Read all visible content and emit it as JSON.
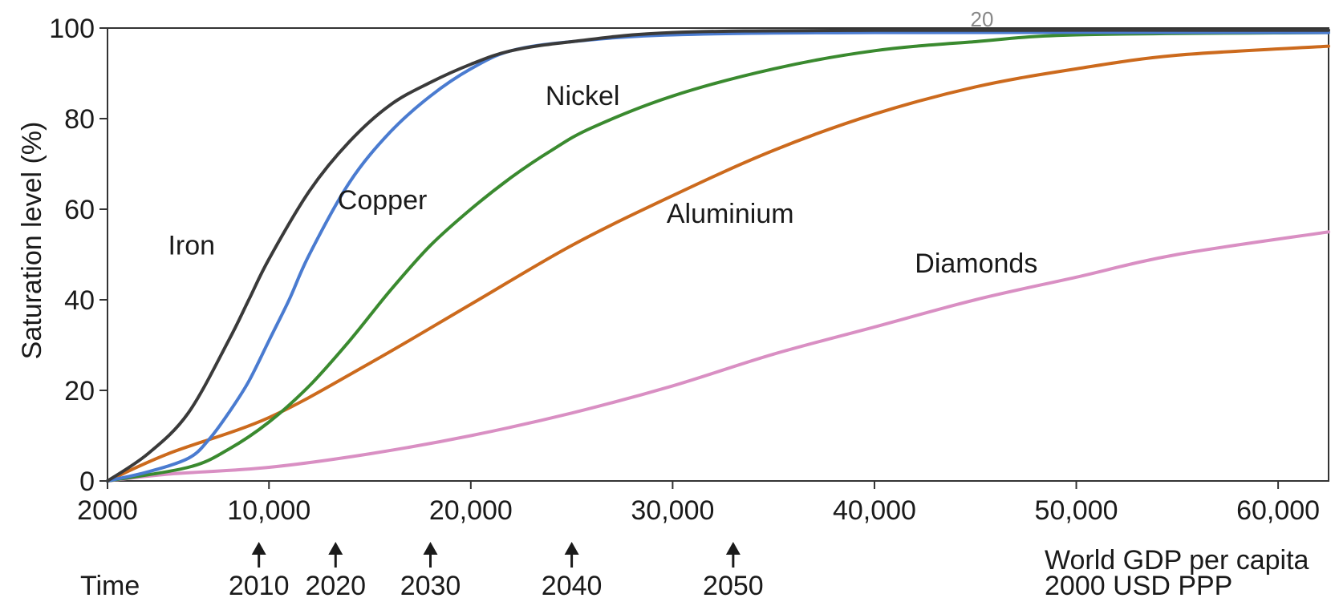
{
  "chart_data": {
    "type": "line",
    "title": "",
    "ylabel": "Saturation level (%)",
    "xlabel_lines": [
      "World GDP per capita",
      "2000 USD PPP"
    ],
    "xlim": [
      2000,
      62500
    ],
    "ylim": [
      0,
      100
    ],
    "x_tick_values": [
      2000,
      10000,
      20000,
      30000,
      40000,
      50000,
      60000
    ],
    "x_tick_labels": [
      "2000",
      "10,000",
      "20,000",
      "30,000",
      "40,000",
      "50,000",
      "60,000"
    ],
    "y_tick_values": [
      0,
      20,
      40,
      60,
      80,
      100
    ],
    "y_tick_labels": [
      "0",
      "20",
      "40",
      "60",
      "80",
      "100"
    ],
    "grid": false,
    "time_axis_label": "Time",
    "time_markers": [
      {
        "year": "2010",
        "x": 9500
      },
      {
        "year": "2020",
        "x": 13300
      },
      {
        "year": "2030",
        "x": 18000
      },
      {
        "year": "2040",
        "x": 25000
      },
      {
        "year": "2050",
        "x": 33000
      }
    ],
    "top_note": "20",
    "series": [
      {
        "name": "Iron",
        "color": "#3a3a3a",
        "x": [
          2000,
          4000,
          6000,
          8000,
          9000,
          10000,
          12000,
          14000,
          16000,
          18000,
          20000,
          22000,
          25000,
          30000,
          40000,
          62500
        ],
        "y": [
          0,
          6,
          15,
          31,
          40,
          49,
          64,
          75,
          83,
          88,
          92,
          95,
          97,
          99,
          99.5,
          99.5
        ]
      },
      {
        "name": "Copper",
        "color": "#4a7bd0",
        "x": [
          2000,
          4000,
          6000,
          7000,
          8000,
          9000,
          10000,
          11000,
          12000,
          14000,
          16000,
          18000,
          20000,
          22000,
          25000,
          30000,
          40000,
          62500
        ],
        "y": [
          0,
          2,
          5,
          9,
          15,
          22,
          31,
          40,
          50,
          66,
          77,
          85,
          91,
          95,
          97,
          98.5,
          99,
          99
        ]
      },
      {
        "name": "Nickel",
        "color": "#3a8a2f",
        "x": [
          2000,
          6000,
          8000,
          10000,
          12000,
          14000,
          16000,
          18000,
          20000,
          22000,
          24000,
          26000,
          30000,
          35000,
          40000,
          45000,
          50000,
          62500
        ],
        "y": [
          0,
          3,
          7,
          13,
          21,
          31,
          42,
          52,
          60,
          67,
          73,
          78,
          85,
          91,
          95,
          97,
          98.5,
          99
        ]
      },
      {
        "name": "Aluminium",
        "color": "#cc6a1d",
        "x": [
          2000,
          5000,
          10000,
          15000,
          20000,
          25000,
          30000,
          35000,
          40000,
          45000,
          50000,
          55000,
          62500
        ],
        "y": [
          0,
          6,
          14,
          26,
          39,
          52,
          63,
          73,
          81,
          87,
          91,
          94,
          96
        ]
      },
      {
        "name": "Diamonds",
        "color": "#d98fc3",
        "x": [
          2000,
          5000,
          10000,
          15000,
          20000,
          25000,
          30000,
          35000,
          40000,
          45000,
          50000,
          55000,
          62500
        ],
        "y": [
          0,
          1.5,
          3,
          6,
          10,
          15,
          21,
          28,
          34,
          40,
          45,
          50,
          55
        ]
      }
    ],
    "series_labels": [
      {
        "series": "Iron",
        "text": "Iron",
        "x": 5000,
        "y": 50
      },
      {
        "series": "Copper",
        "text": "Copper",
        "x": 13400,
        "y": 60
      },
      {
        "series": "Nickel",
        "text": "Nickel",
        "x": 23700,
        "y": 83
      },
      {
        "series": "Aluminium",
        "text": "Aluminium",
        "x": 29700,
        "y": 57
      },
      {
        "series": "Diamonds",
        "text": "Diamonds",
        "x": 42000,
        "y": 46
      }
    ]
  }
}
